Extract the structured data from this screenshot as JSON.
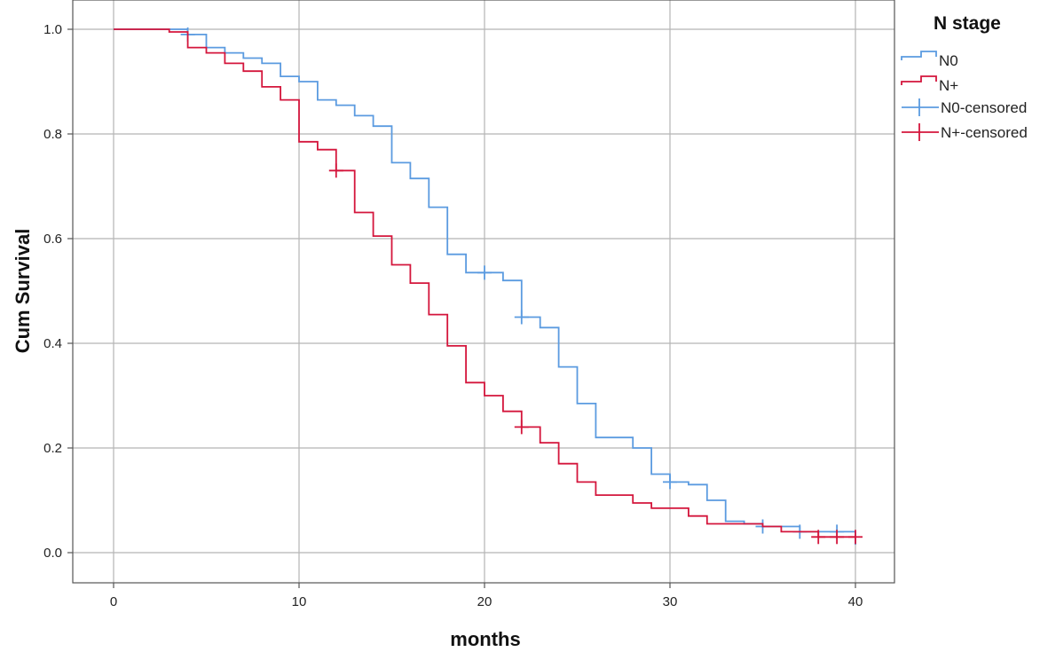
{
  "chart_data": {
    "type": "line",
    "title": "",
    "xlabel": "months",
    "ylabel": "Cum Survival",
    "xlim": [
      0,
      40
    ],
    "ylim": [
      0,
      1
    ],
    "x_ticks": [
      "0",
      "10",
      "20",
      "30",
      "40"
    ],
    "y_ticks": [
      "0.0",
      "0.2",
      "0.4",
      "0.6",
      "0.8",
      "1.0"
    ],
    "grid": true,
    "legend_position": "top-right",
    "legend": {
      "title": "N stage",
      "entries": [
        "N0",
        "N+",
        "N0-censored",
        "N+-censored"
      ]
    },
    "colors": {
      "N0": "#5b9be0",
      "N+": "#d4163c"
    },
    "series": [
      {
        "name": "N0",
        "steps": [
          [
            0,
            1.0
          ],
          [
            4,
            0.99
          ],
          [
            5,
            0.965
          ],
          [
            6,
            0.955
          ],
          [
            7,
            0.945
          ],
          [
            8,
            0.935
          ],
          [
            9,
            0.91
          ],
          [
            10,
            0.9
          ],
          [
            11,
            0.865
          ],
          [
            12,
            0.855
          ],
          [
            13,
            0.835
          ],
          [
            14,
            0.815
          ],
          [
            15,
            0.745
          ],
          [
            16,
            0.715
          ],
          [
            17,
            0.66
          ],
          [
            18,
            0.57
          ],
          [
            19,
            0.535
          ],
          [
            21,
            0.52
          ],
          [
            22,
            0.45
          ],
          [
            23,
            0.43
          ],
          [
            24,
            0.355
          ],
          [
            25,
            0.285
          ],
          [
            26,
            0.22
          ],
          [
            28,
            0.2
          ],
          [
            29,
            0.15
          ],
          [
            30,
            0.135
          ],
          [
            31,
            0.13
          ],
          [
            32,
            0.1
          ],
          [
            33,
            0.06
          ],
          [
            34,
            0.055
          ],
          [
            35,
            0.05
          ],
          [
            37,
            0.04
          ],
          [
            40,
            0.015
          ]
        ],
        "censored": [
          [
            4,
            0.99
          ],
          [
            20,
            0.535
          ],
          [
            22,
            0.45
          ],
          [
            30,
            0.135
          ],
          [
            35,
            0.05
          ],
          [
            37,
            0.04
          ],
          [
            39,
            0.04
          ]
        ]
      },
      {
        "name": "N+",
        "steps": [
          [
            0,
            1.0
          ],
          [
            3,
            0.995
          ],
          [
            4,
            0.965
          ],
          [
            5,
            0.955
          ],
          [
            6,
            0.935
          ],
          [
            7,
            0.92
          ],
          [
            8,
            0.89
          ],
          [
            9,
            0.865
          ],
          [
            10,
            0.785
          ],
          [
            11,
            0.77
          ],
          [
            12,
            0.73
          ],
          [
            13,
            0.65
          ],
          [
            14,
            0.605
          ],
          [
            15,
            0.55
          ],
          [
            16,
            0.515
          ],
          [
            17,
            0.455
          ],
          [
            18,
            0.395
          ],
          [
            19,
            0.325
          ],
          [
            20,
            0.3
          ],
          [
            21,
            0.27
          ],
          [
            22,
            0.24
          ],
          [
            23,
            0.21
          ],
          [
            24,
            0.17
          ],
          [
            25,
            0.135
          ],
          [
            26,
            0.11
          ],
          [
            28,
            0.095
          ],
          [
            29,
            0.085
          ],
          [
            31,
            0.07
          ],
          [
            32,
            0.055
          ],
          [
            35,
            0.05
          ],
          [
            36,
            0.04
          ],
          [
            38,
            0.03
          ],
          [
            40,
            0.03
          ]
        ],
        "censored": [
          [
            12,
            0.73
          ],
          [
            22,
            0.24
          ],
          [
            38,
            0.03
          ],
          [
            39,
            0.03
          ],
          [
            40,
            0.03
          ]
        ]
      }
    ]
  }
}
